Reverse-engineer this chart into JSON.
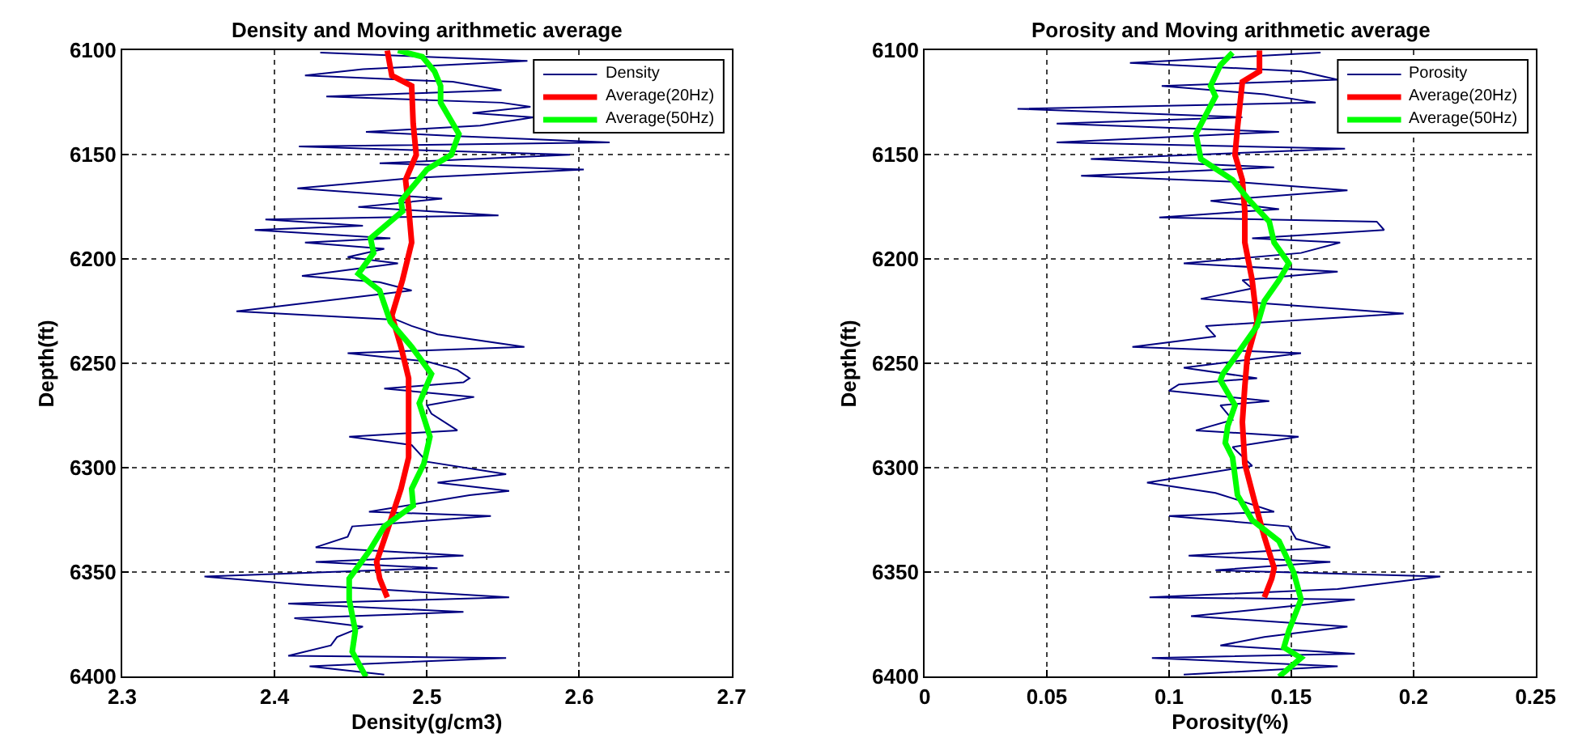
{
  "chart_data": [
    {
      "type": "line",
      "title": "Density and Moving arithmetic average",
      "xlabel": "Density(g/cm3)",
      "ylabel": "Depth(ft)",
      "xlim": [
        2.3,
        2.7
      ],
      "xticks": [
        2.3,
        2.4,
        2.5,
        2.6,
        2.7
      ],
      "ylim": [
        6400,
        6100
      ],
      "yticks": [
        6100,
        6150,
        6200,
        6250,
        6300,
        6350,
        6400
      ],
      "grid": true,
      "legend": "top right",
      "line_style": "solid",
      "marker": "none",
      "series": [
        {
          "name": "Density",
          "color": "#000080",
          "x": [
            2.43,
            2.566,
            2.458,
            2.42,
            2.517,
            2.549,
            2.434,
            2.549,
            2.568,
            2.53,
            2.57,
            2.535,
            2.46,
            2.52,
            2.62,
            2.416,
            2.594,
            2.469,
            2.603,
            2.493,
            2.415,
            2.51,
            2.455,
            2.547,
            2.394,
            2.458,
            2.387,
            2.476,
            2.42,
            2.472,
            2.448,
            2.481,
            2.418,
            2.469,
            2.49,
            2.375,
            2.48,
            2.49,
            2.507,
            2.564,
            2.448,
            2.5,
            2.52,
            2.528,
            2.524,
            2.472,
            2.531,
            2.5,
            2.503,
            2.52,
            2.449,
            2.49,
            2.5,
            2.552,
            2.507,
            2.554,
            2.528,
            2.462,
            2.542,
            2.451,
            2.448,
            2.427,
            2.524,
            2.427,
            2.507,
            2.354,
            2.42,
            2.554,
            2.409,
            2.524,
            2.413,
            2.458,
            2.441,
            2.437,
            2.409,
            2.552,
            2.423,
            2.472
          ],
          "values": [
            6101,
            6105,
            6109,
            6112,
            6115,
            6119,
            6122,
            6125,
            6127,
            6130,
            6132,
            6136,
            6139,
            6141,
            6144,
            6146,
            6150,
            6154,
            6157,
            6161,
            6166,
            6171,
            6175,
            6179,
            6181,
            6184,
            6186,
            6190,
            6192,
            6195,
            6199,
            6202,
            6208,
            6211,
            6215,
            6225,
            6229,
            6232,
            6236,
            6242,
            6245,
            6249,
            6253,
            6257,
            6259,
            6262,
            6266,
            6270,
            6274,
            6282,
            6285,
            6289,
            6297,
            6303,
            6307,
            6311,
            6313,
            6321,
            6323,
            6328,
            6333,
            6338,
            6342,
            6345,
            6348,
            6352,
            6356,
            6362,
            6365,
            6369,
            6372,
            6376,
            6381,
            6385,
            6390,
            6391,
            6395,
            6399
          ]
        },
        {
          "name": "Average(20Hz)",
          "color": "#ff0000",
          "x": [
            2.474,
            2.477,
            2.49,
            2.491,
            2.493,
            2.486,
            2.488,
            2.49,
            2.484,
            2.477,
            2.483,
            2.488,
            2.488,
            2.488,
            2.483,
            2.474,
            2.467,
            2.469,
            2.474
          ],
          "values": [
            6100,
            6112,
            6117,
            6135,
            6150,
            6162,
            6175,
            6192,
            6210,
            6227,
            6242,
            6257,
            6265,
            6295,
            6310,
            6330,
            6345,
            6353,
            6362
          ]
        },
        {
          "name": "Average(50Hz)",
          "color": "#00ff00",
          "x": [
            2.481,
            2.497,
            2.505,
            2.509,
            2.509,
            2.521,
            2.516,
            2.5,
            2.491,
            2.483,
            2.484,
            2.463,
            2.465,
            2.455,
            2.469,
            2.476,
            2.49,
            2.503,
            2.495,
            2.502,
            2.498,
            2.49,
            2.491,
            2.472,
            2.462,
            2.449,
            2.449,
            2.453,
            2.451,
            2.46
          ],
          "values": [
            6100,
            6103,
            6110,
            6117,
            6125,
            6140,
            6150,
            6157,
            6165,
            6172,
            6177,
            6190,
            6197,
            6207,
            6215,
            6230,
            6242,
            6255,
            6269,
            6285,
            6298,
            6310,
            6318,
            6328,
            6340,
            6353,
            6363,
            6378,
            6388,
            6400
          ]
        }
      ]
    },
    {
      "type": "line",
      "title": "Porosity and Moving arithmetic average",
      "xlabel": "Porosity(%)",
      "ylabel": "Depth(ft)",
      "xlim": [
        0,
        0.25
      ],
      "xticks": [
        0,
        0.05,
        0.1,
        0.15,
        0.2,
        0.25
      ],
      "ylim": [
        6400,
        6100
      ],
      "yticks": [
        6100,
        6150,
        6200,
        6250,
        6300,
        6350,
        6400
      ],
      "grid": true,
      "legend": "top right",
      "line_style": "solid",
      "marker": "none",
      "series": [
        {
          "name": "Porosity",
          "color": "#000080",
          "x": [
            0.162,
            0.084,
            0.154,
            0.169,
            0.097,
            0.139,
            0.16,
            0.038,
            0.13,
            0.054,
            0.145,
            0.054,
            0.172,
            0.068,
            0.143,
            0.064,
            0.128,
            0.173,
            0.117,
            0.145,
            0.096,
            0.185,
            0.188,
            0.134,
            0.17,
            0.154,
            0.106,
            0.169,
            0.13,
            0.134,
            0.113,
            0.196,
            0.115,
            0.119,
            0.085,
            0.154,
            0.106,
            0.136,
            0.104,
            0.1,
            0.141,
            0.121,
            0.126,
            0.111,
            0.153,
            0.126,
            0.134,
            0.091,
            0.119,
            0.13,
            0.143,
            0.1,
            0.149,
            0.152,
            0.166,
            0.108,
            0.166,
            0.119,
            0.211,
            0.169,
            0.092,
            0.176,
            0.143,
            0.109,
            0.173,
            0.139,
            0.121,
            0.176,
            0.093,
            0.169,
            0.106
          ],
          "values": [
            6101,
            6106,
            6110,
            6114,
            6117,
            6121,
            6125,
            6128,
            6132,
            6135,
            6139,
            6144,
            6147,
            6152,
            6156,
            6160,
            6163,
            6167,
            6172,
            6176,
            6180,
            6182,
            6186,
            6190,
            6192,
            6197,
            6202,
            6206,
            6210,
            6214,
            6219,
            6226,
            6232,
            6237,
            6242,
            6245,
            6252,
            6257,
            6260,
            6263,
            6268,
            6270,
            6277,
            6282,
            6285,
            6290,
            6299,
            6307,
            6312,
            6316,
            6321,
            6323,
            6328,
            6334,
            6338,
            6342,
            6345,
            6349,
            6352,
            6358,
            6362,
            6363,
            6367,
            6371,
            6376,
            6381,
            6385,
            6389,
            6391,
            6395,
            6399
          ]
        },
        {
          "name": "Average(20Hz)",
          "color": "#ff0000",
          "x": [
            0.137,
            0.137,
            0.13,
            0.128,
            0.127,
            0.13,
            0.131,
            0.131,
            0.134,
            0.136,
            0.132,
            0.131,
            0.13,
            0.131,
            0.135,
            0.139,
            0.143,
            0.142,
            0.139
          ],
          "values": [
            6100,
            6110,
            6115,
            6137,
            6150,
            6162,
            6177,
            6192,
            6210,
            6230,
            6247,
            6261,
            6278,
            6298,
            6316,
            6333,
            6348,
            6353,
            6362
          ]
        },
        {
          "name": "Average(50Hz)",
          "color": "#00ff00",
          "x": [
            0.126,
            0.121,
            0.117,
            0.119,
            0.111,
            0.113,
            0.126,
            0.133,
            0.141,
            0.143,
            0.149,
            0.145,
            0.139,
            0.136,
            0.127,
            0.122,
            0.121,
            0.127,
            0.124,
            0.123,
            0.126,
            0.128,
            0.134,
            0.145,
            0.151,
            0.154,
            0.149,
            0.147,
            0.154,
            0.145
          ],
          "values": [
            6101,
            6107,
            6117,
            6122,
            6140,
            6152,
            6162,
            6172,
            6182,
            6192,
            6202,
            6210,
            6220,
            6232,
            6247,
            6255,
            6258,
            6270,
            6280,
            6288,
            6295,
            6313,
            6325,
            6335,
            6350,
            6363,
            6378,
            6386,
            6391,
            6400
          ]
        }
      ]
    }
  ]
}
